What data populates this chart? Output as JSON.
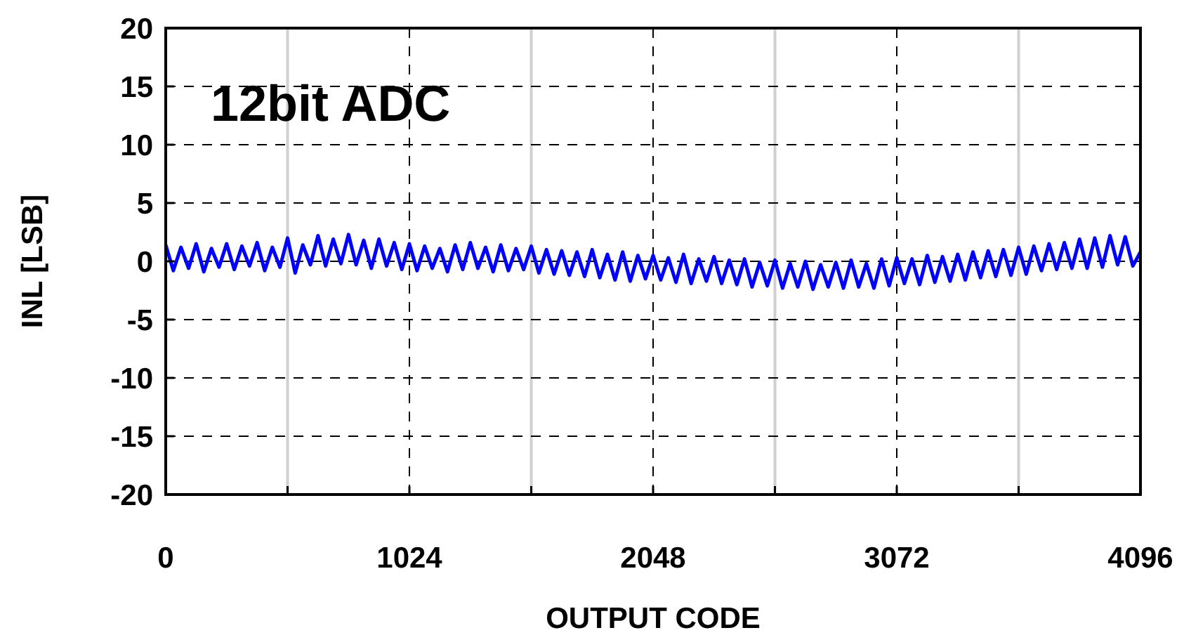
{
  "chart_data": {
    "type": "line",
    "xlabel": "OUTPUT CODE",
    "ylabel": "INL [LSB]",
    "annotations": [
      "12bit ADC"
    ],
    "x": [
      0,
      32,
      64,
      96,
      128,
      160,
      192,
      224,
      256,
      288,
      320,
      352,
      384,
      416,
      448,
      480,
      512,
      544,
      576,
      608,
      640,
      672,
      704,
      736,
      768,
      800,
      832,
      864,
      896,
      928,
      960,
      992,
      1024,
      1056,
      1088,
      1120,
      1152,
      1184,
      1216,
      1248,
      1280,
      1312,
      1344,
      1376,
      1408,
      1440,
      1472,
      1504,
      1536,
      1568,
      1600,
      1632,
      1664,
      1696,
      1728,
      1760,
      1792,
      1824,
      1856,
      1888,
      1920,
      1952,
      1984,
      2016,
      2048,
      2080,
      2112,
      2144,
      2176,
      2208,
      2240,
      2272,
      2304,
      2336,
      2368,
      2400,
      2432,
      2464,
      2496,
      2528,
      2560,
      2592,
      2624,
      2656,
      2688,
      2720,
      2752,
      2784,
      2816,
      2848,
      2880,
      2912,
      2944,
      2976,
      3008,
      3040,
      3072,
      3104,
      3136,
      3168,
      3200,
      3232,
      3264,
      3296,
      3328,
      3360,
      3392,
      3424,
      3456,
      3488,
      3520,
      3552,
      3584,
      3616,
      3648,
      3680,
      3712,
      3744,
      3776,
      3808,
      3840,
      3872,
      3904,
      3936,
      3968,
      4000,
      4032,
      4064,
      4096
    ],
    "series": [
      {
        "color": "#0000ff",
        "values": [
          1.4,
          -0.8,
          1.2,
          -0.6,
          1.5,
          -0.9,
          1.1,
          -0.5,
          1.5,
          -0.7,
          1.3,
          -0.4,
          1.6,
          -0.8,
          1.2,
          -0.5,
          2.0,
          -1.0,
          1.4,
          -0.3,
          2.2,
          -0.4,
          1.9,
          -0.2,
          2.3,
          -0.3,
          1.8,
          -0.6,
          1.9,
          -0.4,
          1.6,
          -0.7,
          1.5,
          -0.8,
          1.3,
          -0.6,
          1.1,
          -0.9,
          1.4,
          -0.7,
          1.6,
          -0.6,
          1.2,
          -0.9,
          1.4,
          -0.8,
          1.1,
          -0.7,
          1.3,
          -1.0,
          1.0,
          -1.1,
          0.9,
          -1.2,
          0.8,
          -1.3,
          1.0,
          -1.4,
          0.6,
          -1.6,
          0.8,
          -1.7,
          0.5,
          -1.5,
          0.5,
          -1.6,
          0.3,
          -1.8,
          0.6,
          -1.9,
          0.2,
          -1.7,
          0.4,
          -1.9,
          0.1,
          -2.0,
          0.2,
          -2.2,
          -0.1,
          -2.1,
          0.1,
          -2.3,
          -0.2,
          -2.2,
          0.0,
          -2.4,
          -0.3,
          -2.2,
          -0.1,
          -2.3,
          0.1,
          -2.2,
          -0.2,
          -2.3,
          0.2,
          -2.1,
          0.3,
          -1.9,
          0.2,
          -2.0,
          0.5,
          -1.8,
          0.4,
          -1.7,
          0.6,
          -1.6,
          0.8,
          -1.4,
          0.9,
          -1.3,
          1.0,
          -1.2,
          1.2,
          -1.1,
          1.3,
          -0.8,
          1.5,
          -0.7,
          1.6,
          -0.6,
          1.9,
          -0.6,
          2.0,
          -0.5,
          2.2,
          -0.3,
          2.1,
          -0.4,
          0.8
        ]
      }
    ],
    "xlim": [
      0,
      4096
    ],
    "xticks": [
      0,
      {
        "value": 512,
        "label": null
      },
      1024,
      {
        "value": 1536,
        "label": null
      },
      2048,
      {
        "value": 2560,
        "label": null
      },
      3072,
      {
        "value": 3584,
        "label": null
      },
      4096
    ],
    "ylim": [
      -20,
      20
    ],
    "yticks": [
      -20,
      -15,
      -10,
      -5,
      0,
      5,
      10,
      15,
      20
    ],
    "grid": true,
    "line_style": "solid"
  }
}
